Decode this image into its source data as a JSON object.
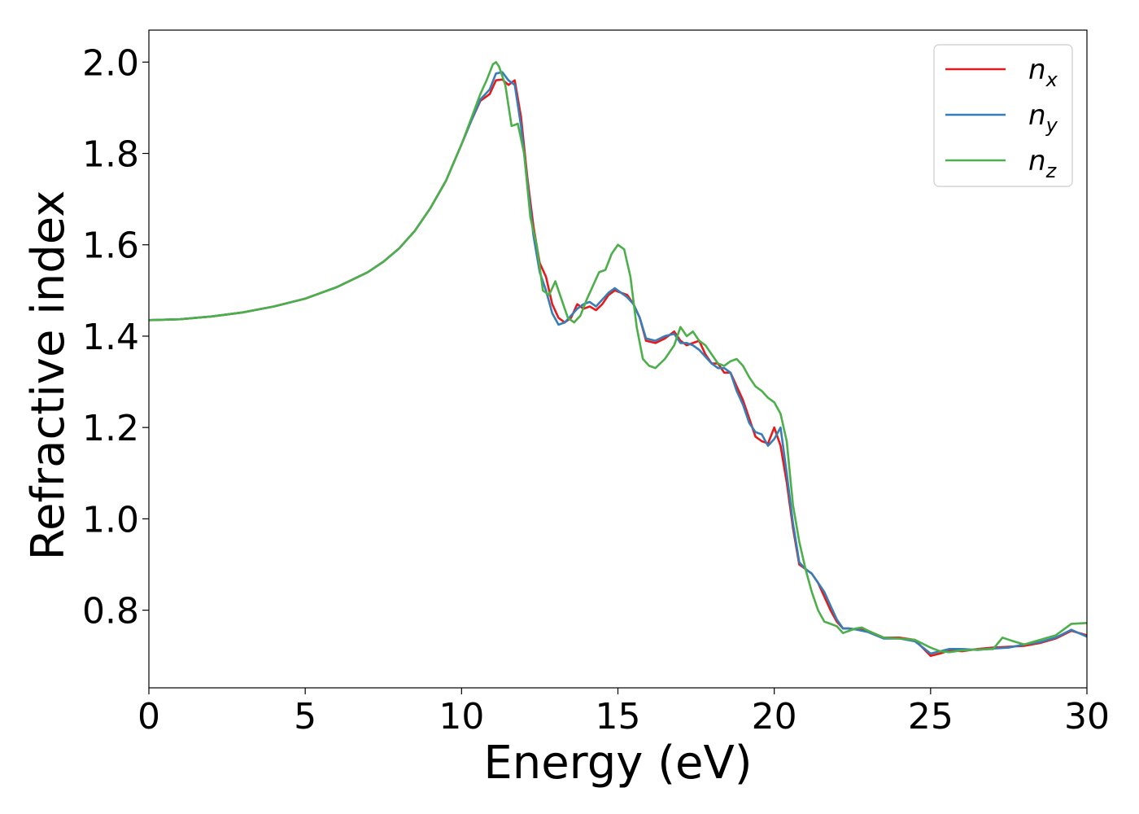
{
  "chart_data": {
    "type": "line",
    "title": "",
    "xlabel": "Energy (eV)",
    "ylabel": "Refractive index",
    "xlim": [
      0,
      30
    ],
    "ylim": [
      0.63,
      2.07
    ],
    "xticks": [
      0,
      5,
      10,
      15,
      20,
      25,
      30
    ],
    "yticks": [
      0.8,
      1.0,
      1.2,
      1.4,
      1.6,
      1.8,
      2.0
    ],
    "xtick_labels": [
      "0",
      "5",
      "10",
      "15",
      "20",
      "25",
      "30"
    ],
    "ytick_labels": [
      "0.8",
      "1.0",
      "1.2",
      "1.4",
      "1.6",
      "1.8",
      "2.0"
    ],
    "grid": false,
    "legend_position": "top-right",
    "series": [
      {
        "name": "n",
        "subscript": "x",
        "color": "#e41a1c",
        "x": [
          0,
          1,
          2,
          3,
          4,
          5,
          6,
          7,
          7.5,
          8,
          8.5,
          9,
          9.5,
          10,
          10.3,
          10.6,
          10.9,
          11.1,
          11.3,
          11.5,
          11.7,
          11.9,
          12.1,
          12.3,
          12.5,
          12.7,
          12.9,
          13.1,
          13.3,
          13.5,
          13.7,
          13.9,
          14.1,
          14.3,
          14.5,
          14.7,
          14.9,
          15.1,
          15.3,
          15.5,
          15.7,
          15.9,
          16.2,
          16.5,
          16.8,
          17.0,
          17.2,
          17.4,
          17.6,
          17.8,
          18.0,
          18.2,
          18.4,
          18.6,
          18.8,
          19.0,
          19.2,
          19.4,
          19.6,
          19.8,
          20.0,
          20.2,
          20.4,
          20.6,
          20.8,
          21.0,
          21.2,
          21.4,
          21.6,
          21.8,
          22.0,
          22.2,
          22.4,
          22.6,
          22.8,
          23.0,
          23.5,
          24.0,
          24.5,
          25.0,
          25.3,
          25.6,
          26.0,
          26.5,
          27.0,
          27.5,
          28.0,
          28.5,
          29.0,
          29.5,
          30.0
        ],
        "y": [
          1.435,
          1.437,
          1.443,
          1.452,
          1.465,
          1.482,
          1.507,
          1.54,
          1.563,
          1.592,
          1.63,
          1.68,
          1.74,
          1.82,
          1.87,
          1.915,
          1.93,
          1.96,
          1.962,
          1.95,
          1.96,
          1.88,
          1.75,
          1.64,
          1.56,
          1.53,
          1.47,
          1.44,
          1.43,
          1.44,
          1.47,
          1.46,
          1.465,
          1.457,
          1.47,
          1.49,
          1.5,
          1.495,
          1.49,
          1.47,
          1.44,
          1.39,
          1.385,
          1.395,
          1.41,
          1.39,
          1.38,
          1.385,
          1.39,
          1.36,
          1.34,
          1.34,
          1.32,
          1.32,
          1.29,
          1.26,
          1.22,
          1.18,
          1.17,
          1.165,
          1.2,
          1.16,
          1.08,
          0.98,
          0.9,
          0.89,
          0.88,
          0.86,
          0.83,
          0.8,
          0.775,
          0.76,
          0.76,
          0.758,
          0.757,
          0.755,
          0.74,
          0.74,
          0.735,
          0.7,
          0.705,
          0.712,
          0.71,
          0.715,
          0.718,
          0.72,
          0.722,
          0.728,
          0.738,
          0.755,
          0.745
        ]
      },
      {
        "name": "n",
        "subscript": "y",
        "color": "#377eb8",
        "x": [
          0,
          1,
          2,
          3,
          4,
          5,
          6,
          7,
          7.5,
          8,
          8.5,
          9,
          9.5,
          10,
          10.3,
          10.6,
          10.9,
          11.1,
          11.3,
          11.5,
          11.7,
          11.9,
          12.1,
          12.3,
          12.5,
          12.7,
          12.9,
          13.1,
          13.3,
          13.5,
          13.7,
          13.9,
          14.1,
          14.3,
          14.5,
          14.7,
          14.9,
          15.1,
          15.3,
          15.5,
          15.7,
          15.9,
          16.2,
          16.5,
          16.8,
          17.0,
          17.2,
          17.4,
          17.6,
          17.8,
          18.0,
          18.2,
          18.4,
          18.6,
          18.8,
          19.0,
          19.2,
          19.4,
          19.6,
          19.8,
          20.0,
          20.2,
          20.4,
          20.6,
          20.8,
          21.0,
          21.2,
          21.4,
          21.6,
          21.8,
          22.0,
          22.2,
          22.4,
          22.6,
          22.8,
          23.0,
          23.5,
          24.0,
          24.5,
          25.0,
          25.3,
          25.6,
          26.0,
          26.5,
          27.0,
          27.5,
          28.0,
          28.5,
          29.0,
          29.5,
          30.0
        ],
        "y": [
          1.435,
          1.437,
          1.443,
          1.452,
          1.465,
          1.482,
          1.507,
          1.54,
          1.563,
          1.592,
          1.63,
          1.68,
          1.74,
          1.82,
          1.87,
          1.918,
          1.94,
          1.975,
          1.978,
          1.96,
          1.95,
          1.86,
          1.74,
          1.62,
          1.54,
          1.5,
          1.45,
          1.425,
          1.43,
          1.445,
          1.46,
          1.47,
          1.475,
          1.465,
          1.48,
          1.495,
          1.505,
          1.495,
          1.485,
          1.47,
          1.44,
          1.395,
          1.39,
          1.4,
          1.405,
          1.385,
          1.385,
          1.38,
          1.37,
          1.355,
          1.34,
          1.33,
          1.33,
          1.32,
          1.28,
          1.25,
          1.21,
          1.19,
          1.185,
          1.16,
          1.175,
          1.2,
          1.1,
          0.99,
          0.905,
          0.89,
          0.88,
          0.86,
          0.84,
          0.81,
          0.78,
          0.76,
          0.76,
          0.758,
          0.755,
          0.752,
          0.738,
          0.738,
          0.732,
          0.705,
          0.71,
          0.715,
          0.715,
          0.713,
          0.716,
          0.718,
          0.725,
          0.73,
          0.74,
          0.757,
          0.742
        ]
      },
      {
        "name": "n",
        "subscript": "z",
        "color": "#4daf4a",
        "x": [
          0,
          1,
          2,
          3,
          4,
          5,
          6,
          7,
          7.5,
          8,
          8.5,
          9,
          9.5,
          10,
          10.3,
          10.6,
          10.8,
          11.0,
          11.1,
          11.2,
          11.4,
          11.6,
          11.8,
          12.0,
          12.2,
          12.4,
          12.6,
          12.8,
          13.0,
          13.2,
          13.4,
          13.6,
          13.8,
          14.0,
          14.2,
          14.4,
          14.6,
          14.8,
          15.0,
          15.2,
          15.4,
          15.6,
          15.8,
          16.0,
          16.2,
          16.5,
          16.8,
          17.0,
          17.2,
          17.4,
          17.6,
          17.8,
          18.0,
          18.2,
          18.4,
          18.6,
          18.8,
          19.0,
          19.2,
          19.4,
          19.6,
          19.8,
          20.0,
          20.2,
          20.4,
          20.6,
          20.8,
          21.0,
          21.2,
          21.4,
          21.6,
          21.8,
          22.0,
          22.2,
          22.4,
          22.6,
          22.8,
          23.0,
          23.5,
          24.0,
          24.5,
          25.0,
          25.3,
          25.6,
          26.0,
          26.5,
          27.0,
          27.3,
          27.6,
          28.0,
          28.5,
          29.0,
          29.5,
          30.0
        ],
        "y": [
          1.435,
          1.437,
          1.443,
          1.452,
          1.465,
          1.482,
          1.507,
          1.54,
          1.563,
          1.592,
          1.63,
          1.68,
          1.74,
          1.82,
          1.875,
          1.93,
          1.96,
          1.995,
          2.0,
          1.99,
          1.95,
          1.86,
          1.865,
          1.8,
          1.66,
          1.6,
          1.5,
          1.49,
          1.52,
          1.48,
          1.44,
          1.43,
          1.445,
          1.48,
          1.51,
          1.54,
          1.545,
          1.58,
          1.6,
          1.59,
          1.53,
          1.42,
          1.35,
          1.335,
          1.33,
          1.35,
          1.38,
          1.42,
          1.4,
          1.41,
          1.39,
          1.38,
          1.36,
          1.34,
          1.335,
          1.345,
          1.35,
          1.335,
          1.31,
          1.29,
          1.28,
          1.265,
          1.255,
          1.23,
          1.17,
          1.03,
          0.95,
          0.89,
          0.84,
          0.8,
          0.775,
          0.77,
          0.765,
          0.75,
          0.755,
          0.76,
          0.762,
          0.755,
          0.74,
          0.738,
          0.735,
          0.718,
          0.71,
          0.708,
          0.712,
          0.714,
          0.715,
          0.74,
          0.733,
          0.725,
          0.735,
          0.745,
          0.77,
          0.772
        ]
      }
    ]
  }
}
